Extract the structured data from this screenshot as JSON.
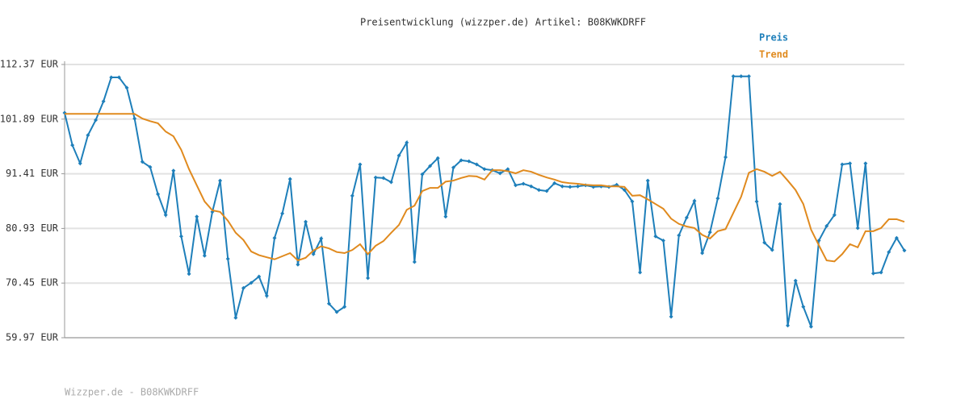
{
  "chart_data": {
    "type": "line",
    "title": "Preisentwicklung (wizzper.de) Artikel: B08KWKDRFF",
    "source": "Wizzper.de - B08KWKDRFF",
    "ylim": [
      59.97,
      112.37
    ],
    "yticks": [
      {
        "value": 59.97,
        "label": "59.97 EUR"
      },
      {
        "value": 70.45,
        "label": "70.45 EUR"
      },
      {
        "value": 80.93,
        "label": "80.93 EUR"
      },
      {
        "value": 91.41,
        "label": "91.41 EUR"
      },
      {
        "value": 101.89,
        "label": "101.89 EUR"
      },
      {
        "value": 112.37,
        "label": "112.37 EUR"
      }
    ],
    "grid": true,
    "legend": "top-right",
    "series": [
      {
        "name": "Preis",
        "color": "#1e7fba",
        "markers": true,
        "values": [
          103.1,
          96.9,
          93.4,
          98.8,
          101.7,
          105.3,
          109.9,
          109.9,
          107.9,
          102.0,
          93.7,
          92.7,
          87.5,
          83.5,
          92.0,
          79.4,
          72.2,
          83.2,
          75.7,
          84.1,
          90.1,
          75.1,
          63.8,
          69.5,
          70.5,
          71.7,
          68.0,
          79.1,
          83.8,
          90.4,
          74.0,
          82.2,
          76.0,
          79.0,
          66.5,
          64.9,
          65.9,
          87.2,
          93.2,
          71.4,
          90.7,
          90.6,
          89.8,
          94.9,
          97.4,
          74.5,
          91.3,
          92.9,
          94.4,
          83.2,
          92.6,
          94.0,
          93.8,
          93.2,
          92.3,
          92.1,
          91.5,
          92.3,
          89.2,
          89.5,
          89.0,
          88.3,
          88.1,
          89.6,
          89.0,
          88.9,
          89.0,
          89.2,
          88.9,
          89.0,
          88.9,
          89.3,
          88.3,
          86.1,
          72.5,
          90.1,
          79.4,
          78.6,
          64.0,
          79.6,
          83.0,
          86.2,
          76.2,
          80.2,
          86.7,
          94.6,
          110.1,
          110.1,
          110.1,
          86.1,
          78.2,
          76.8,
          85.6,
          62.3,
          70.9,
          65.9,
          62.1,
          78.6,
          81.4,
          83.5,
          93.2,
          93.4,
          81.0,
          93.4,
          72.3,
          72.5,
          76.4,
          79.1,
          76.7
        ]
      },
      {
        "name": "Trend",
        "color": "#e08a1e",
        "markers": false,
        "values": [
          102.9,
          102.9,
          102.9,
          102.9,
          102.9,
          102.9,
          102.9,
          102.9,
          102.9,
          102.9,
          102.0,
          101.5,
          101.1,
          99.5,
          98.6,
          96.0,
          92.3,
          89.2,
          86.1,
          84.4,
          84.1,
          82.4,
          80.1,
          78.7,
          76.5,
          75.8,
          75.4,
          75.0,
          75.6,
          76.2,
          74.8,
          75.3,
          76.7,
          77.5,
          77.1,
          76.4,
          76.2,
          76.8,
          77.9,
          76.0,
          77.6,
          78.5,
          80.1,
          81.6,
          84.5,
          85.3,
          88.1,
          88.7,
          88.7,
          89.9,
          90.1,
          90.6,
          91.0,
          90.9,
          90.3,
          92.1,
          92.1,
          91.9,
          91.5,
          92.1,
          91.8,
          91.2,
          90.7,
          90.3,
          89.8,
          89.6,
          89.5,
          89.3,
          89.2,
          89.2,
          89.0,
          89.0,
          88.9,
          87.2,
          87.3,
          86.5,
          85.6,
          84.7,
          82.8,
          81.8,
          81.3,
          81.0,
          79.7,
          79.0,
          80.4,
          80.8,
          83.9,
          87.0,
          91.6,
          92.3,
          91.8,
          91.0,
          91.8,
          90.1,
          88.3,
          85.6,
          80.7,
          77.7,
          74.8,
          74.6,
          76.0,
          77.9,
          77.3,
          80.4,
          80.4,
          81.0,
          82.7,
          82.7,
          82.2
        ]
      }
    ]
  }
}
